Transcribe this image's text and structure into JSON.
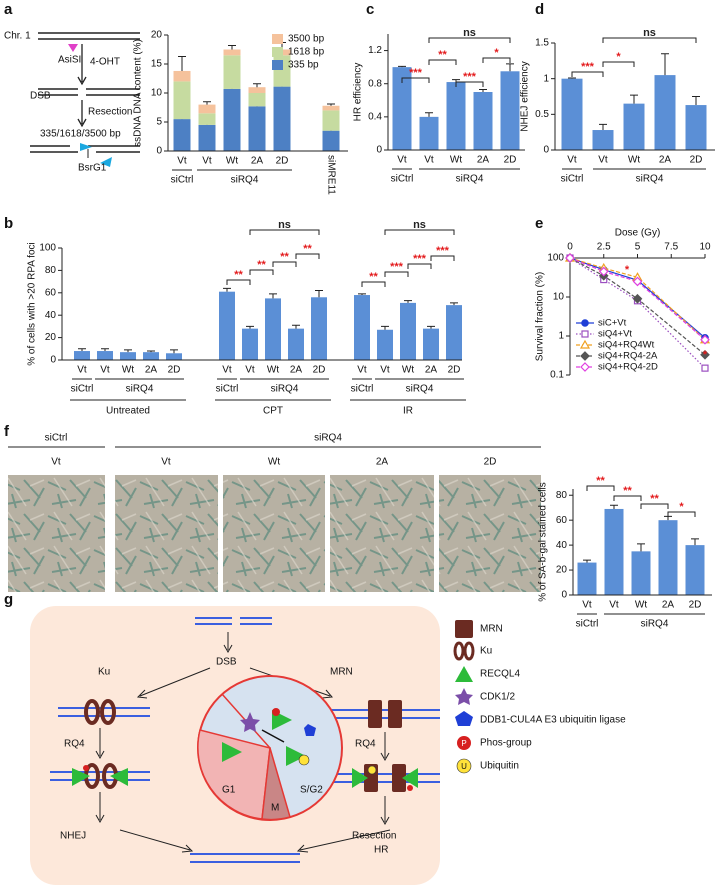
{
  "panel_labels": [
    "a",
    "b",
    "c",
    "d",
    "e",
    "f",
    "g"
  ],
  "diagram_a": {
    "chromosome": "Chr. 1",
    "site": "AsiSI",
    "treatment": "4-OHT",
    "break": "DSB",
    "step": "Resection",
    "lengths": "335/1618/3500 bp",
    "probe_site": "BsrG1"
  },
  "chart_data": [
    {
      "type": "stacked_bar",
      "ylabel": "ssDNA DNA content (%)",
      "categories": [
        "Vt",
        "Vt",
        "Wt",
        "2A",
        "2D",
        "siMRE11"
      ],
      "groups": [
        "siCtrl",
        "siRQ4"
      ],
      "series": [
        {
          "name": "335 bp",
          "color": "#4d80c4",
          "values": [
            5.5,
            4.5,
            10.7,
            7.7,
            11.1,
            3.5
          ],
          "errors": [
            0.3,
            0.2,
            0.3,
            0.2,
            0.2,
            0.2
          ]
        },
        {
          "name": "1618 bp",
          "color": "#c6dba0",
          "values": [
            6.5,
            2.0,
            5.8,
            2.3,
            5.4,
            3.5
          ]
        },
        {
          "name": "3500 bp",
          "color": "#f5c29c",
          "values": [
            1.8,
            1.5,
            1.0,
            1.0,
            1.0,
            0.8
          ],
          "errors": [
            2.5,
            0.5,
            0.7,
            0.6,
            1.2,
            0.3
          ]
        }
      ],
      "ylim": [
        0,
        20
      ],
      "yticks": [
        0,
        5,
        10,
        15,
        20
      ]
    },
    {
      "type": "bar",
      "ylabel": "HR efficiency",
      "categories": [
        "Vt",
        "Vt",
        "Wt",
        "2A",
        "2D"
      ],
      "groups": [
        "siCtrl",
        "siRQ4"
      ],
      "values": [
        1.0,
        0.4,
        0.82,
        0.7,
        0.95
      ],
      "errors": [
        0.01,
        0.05,
        0.03,
        0.03,
        0.09
      ],
      "color": "#5b8fd6",
      "ylim": [
        0,
        1.4
      ],
      "yticks": [
        0,
        0.4,
        0.8,
        1.2
      ],
      "annotations": [
        "***",
        "**",
        "***",
        "*",
        "ns"
      ]
    },
    {
      "type": "bar",
      "ylabel": "NHEJ efficiency",
      "categories": [
        "Vt",
        "Vt",
        "Wt",
        "2A",
        "2D"
      ],
      "groups": [
        "siCtrl",
        "siRQ4"
      ],
      "values": [
        1.0,
        0.28,
        0.65,
        1.05,
        0.63
      ],
      "errors": [
        0.01,
        0.08,
        0.12,
        0.3,
        0.12
      ],
      "color": "#5b8fd6",
      "ylim": [
        0,
        1.5
      ],
      "yticks": [
        0,
        0.5,
        1,
        1.5
      ],
      "annotations": [
        "***",
        "*",
        "ns"
      ]
    },
    {
      "type": "bar",
      "ylabel": "% of cells with >20 RPA foci",
      "categories": [
        "Vt",
        "Vt",
        "Wt",
        "2A",
        "2D",
        "Vt",
        "Vt",
        "Wt",
        "2A",
        "2D",
        "Vt",
        "Vt",
        "Wt",
        "2A",
        "2D"
      ],
      "groups": [
        "siCtrl",
        "siRQ4",
        "siCtrl",
        "siRQ4",
        "siCtrl",
        "siRQ4"
      ],
      "treatments": [
        "Untreated",
        "CPT",
        "IR"
      ],
      "values": [
        8,
        8,
        7,
        7,
        6,
        61,
        28,
        55,
        28,
        56,
        58,
        27,
        51,
        28,
        49
      ],
      "errors": [
        2,
        2,
        2,
        1,
        3,
        3,
        2,
        4,
        3,
        6,
        1,
        3,
        2,
        2,
        2
      ],
      "color": "#5b8fd6",
      "ylim": [
        0,
        100
      ],
      "yticks": [
        0,
        20,
        40,
        60,
        80,
        100
      ],
      "annotations": [
        "**",
        "**",
        "**",
        "**",
        "ns",
        "**",
        "***",
        "***",
        "***",
        "ns"
      ]
    },
    {
      "type": "line",
      "xlabel": "Dose (Gy)",
      "ylabel": "Survival fraction (%)",
      "x": [
        0,
        2.5,
        5,
        10
      ],
      "xlim": [
        0,
        10
      ],
      "xticks": [
        0,
        2.5,
        5,
        7.5,
        10
      ],
      "ylim": [
        0.1,
        100
      ],
      "yticks": [
        0.1,
        1,
        10,
        100
      ],
      "log_y": true,
      "legend": "lower left",
      "series": [
        {
          "name": "siC+Vt",
          "color": "#1f3fd6",
          "marker": "circle",
          "filled": true,
          "dash": "solid",
          "values": [
            100,
            50,
            27,
            0.9
          ]
        },
        {
          "name": "siQ4+Vt",
          "color": "#9b4fc0",
          "marker": "square",
          "filled": false,
          "dash": "dotted",
          "values": [
            100,
            28,
            8,
            0.15
          ]
        },
        {
          "name": "siQ4+RQ4Wt",
          "color": "#f0a020",
          "marker": "triangle",
          "filled": false,
          "dash": "dashed",
          "values": [
            100,
            55,
            32,
            0.8
          ]
        },
        {
          "name": "siQ4+RQ4-2A",
          "color": "#555555",
          "marker": "diamond",
          "filled": true,
          "dash": "dashed",
          "values": [
            100,
            35,
            9,
            0.33
          ]
        },
        {
          "name": "siQ4+RQ4-2D",
          "color": "#e040e0",
          "marker": "diamond",
          "filled": false,
          "dash": "dashed",
          "values": [
            100,
            45,
            25,
            0.8
          ]
        }
      ],
      "annotations": [
        "*",
        "*"
      ]
    },
    {
      "type": "bar",
      "ylabel": "% of SA-b-gal stained cells",
      "categories": [
        "Vt",
        "Vt",
        "Wt",
        "2A",
        "2D"
      ],
      "groups": [
        "siCtrl",
        "siRQ4"
      ],
      "values": [
        26,
        69,
        35,
        60,
        40
      ],
      "errors": [
        2,
        3,
        6,
        3,
        5
      ],
      "color": "#5b8fd6",
      "ylim": [
        0,
        85
      ],
      "yticks": [
        0,
        20,
        40,
        60,
        80
      ],
      "annotations": [
        "**",
        "**",
        "**",
        "*"
      ]
    }
  ],
  "panel_f_images": {
    "groups": [
      "siCtrl",
      "siRQ4"
    ],
    "conditions": [
      "Vt",
      "Vt",
      "Wt",
      "2A",
      "2D"
    ]
  },
  "model_g": {
    "break": "DSB",
    "left_sensor": "Ku",
    "right_sensor": "MRN",
    "left_helicase": "RQ4",
    "right_helicase": "RQ4",
    "phase_g1": "G1",
    "phase_m": "M",
    "phase_sg2": "S/G2",
    "left_outcome": "NHEJ",
    "right_outcome_1": "Resection",
    "right_outcome_2": "HR",
    "legend": [
      "MRN",
      "Ku",
      "RECQL4",
      "CDK1/2",
      "DDB1-CUL4A E3 ubiquitin ligase",
      "Phos-group",
      "Ubiquitin"
    ],
    "phos_symbol": "P",
    "ubiquitin_symbol": "U"
  }
}
